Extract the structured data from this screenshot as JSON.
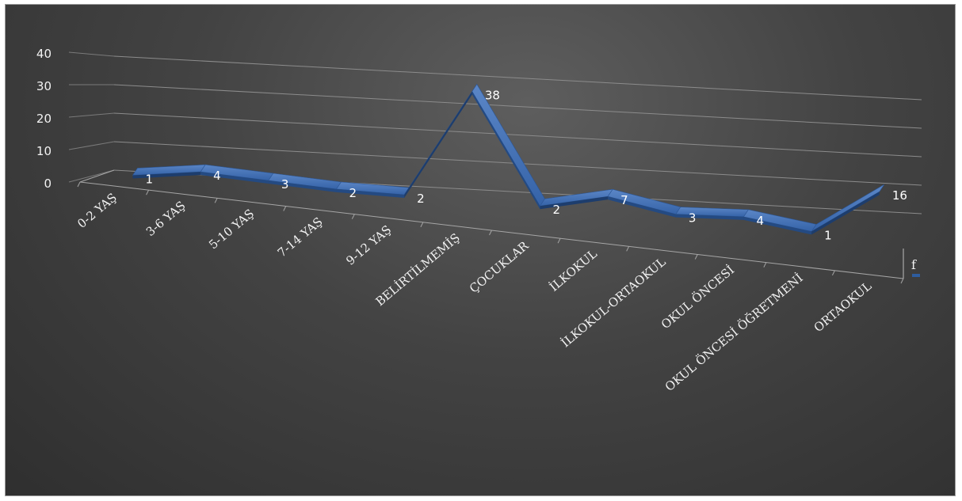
{
  "chart_data": {
    "type": "line",
    "style": "3d-ribbon",
    "categories": [
      "0-2 YAŞ",
      "3-6 YAŞ",
      "5-10 YAŞ",
      "7-14 YAŞ",
      "9-12 YAŞ",
      "BELİRTİLMEMİŞ",
      "ÇOCUKLAR",
      "İLKOKUL",
      "İLKOKUL-ORTAOKUL",
      "OKUL ÖNCESİ",
      "OKUL ÖNCESİ ÖĞRETMENİ",
      "ORTAOKUL"
    ],
    "series": [
      {
        "name": "f",
        "values": [
          1,
          4,
          3,
          2,
          2,
          38,
          2,
          7,
          3,
          4,
          1,
          16
        ],
        "color": "#2e5d9f"
      }
    ],
    "y_ticks": [
      "0",
      "10",
      "20",
      "30",
      "40"
    ],
    "ylim": [
      0,
      40
    ],
    "grid": true,
    "legend": "right",
    "background": "#3d3d3d"
  }
}
